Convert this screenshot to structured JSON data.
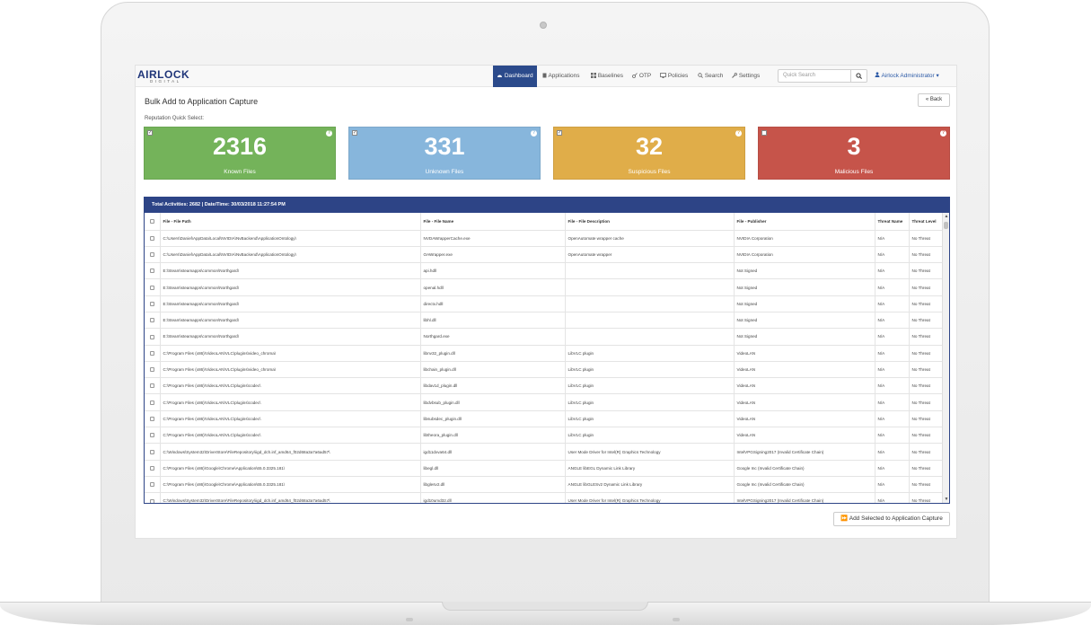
{
  "app": {
    "logo_text": "AIRLOCK",
    "logo_sub": "DIGITAL"
  },
  "nav": {
    "items": [
      {
        "label": "Dashboard",
        "icon": "dashboard-icon",
        "active": true
      },
      {
        "label": "Applications",
        "icon": "file-icon",
        "active": false
      },
      {
        "label": "Baselines",
        "icon": "grid-icon",
        "active": false
      },
      {
        "label": "OTP",
        "icon": "key-icon",
        "active": false
      },
      {
        "label": "Policies",
        "icon": "monitor-icon",
        "active": false
      },
      {
        "label": "Search",
        "icon": "search-icon",
        "active": false
      },
      {
        "label": "Settings",
        "icon": "wrench-icon",
        "active": false
      }
    ],
    "search_placeholder": "Quick Search",
    "user_label": "Airlock Administrator"
  },
  "page": {
    "title": "Bulk Add to Application Capture",
    "back_label": "Back",
    "quick_select_label": "Reputation Quick Select:"
  },
  "tiles": [
    {
      "count": "2316",
      "label": "Known Files",
      "color": "#74b35a",
      "checked": true
    },
    {
      "count": "331",
      "label": "Unknown Files",
      "color": "#87b6dc",
      "checked": true
    },
    {
      "count": "32",
      "label": "Suspicious Files",
      "color": "#e0ad49",
      "checked": true
    },
    {
      "count": "3",
      "label": "Malicious Files",
      "color": "#c6544a",
      "checked": false
    }
  ],
  "table": {
    "summary": "Total Activities: 2682 | Date/Time: 30/03/2018 11:27:54 PM",
    "columns": [
      "File - File Path",
      "File - File Name",
      "File - File Description",
      "File - Publisher",
      "Threat Name",
      "Threat Level"
    ],
    "rows": [
      [
        "C:\\Users\\Daniel\\AppData\\Local\\NVIDIA\\NvBackend\\ApplicationOntology\\",
        "NVDAWrapperCache.exe",
        "OpenAutomate wrapper cache",
        "NVIDIA Corporation",
        "N/A",
        "No Threat"
      ],
      [
        "C:\\Users\\Daniel\\AppData\\Local\\NVIDIA\\NvBackend\\ApplicationOntology\\",
        "OAWrapper.exe",
        "OpenAutomate wrapper",
        "NVIDIA Corporation",
        "N/A",
        "No Threat"
      ],
      [
        "E:\\Steam\\steamapps\\common\\Northgard\\",
        "api.hdll",
        "",
        "Not Signed",
        "N/A",
        "No Threat"
      ],
      [
        "E:\\Steam\\steamapps\\common\\Northgard\\",
        "openal.hdll",
        "",
        "Not Signed",
        "N/A",
        "No Threat"
      ],
      [
        "E:\\Steam\\steamapps\\common\\Northgard\\",
        "directx.hdll",
        "",
        "Not Signed",
        "N/A",
        "No Threat"
      ],
      [
        "E:\\Steam\\steamapps\\common\\Northgard\\",
        "libhl.dll",
        "",
        "Not Signed",
        "N/A",
        "No Threat"
      ],
      [
        "E:\\Steam\\steamapps\\common\\Northgard\\",
        "Northgard.exe",
        "",
        "Not Signed",
        "N/A",
        "No Threat"
      ],
      [
        "C:\\Program Files (x86)\\VideoLAN\\VLC\\plugins\\video_chroma\\",
        "libnv32_plugin.dll",
        "LibVLC plugin",
        "VideoLAN",
        "N/A",
        "No Threat"
      ],
      [
        "C:\\Program Files (x86)\\VideoLAN\\VLC\\plugins\\video_chroma\\",
        "libchain_plugin.dll",
        "LibVLC plugin",
        "VideoLAN",
        "N/A",
        "No Threat"
      ],
      [
        "C:\\Program Files (x86)\\VideoLAN\\VLC\\plugins\\codec\\",
        "libdav1d_plugin.dll",
        "LibVLC plugin",
        "VideoLAN",
        "N/A",
        "No Threat"
      ],
      [
        "C:\\Program Files (x86)\\VideoLAN\\VLC\\plugins\\codec\\",
        "libdvbsub_plugin.dll",
        "LibVLC plugin",
        "VideoLAN",
        "N/A",
        "No Threat"
      ],
      [
        "C:\\Program Files (x86)\\VideoLAN\\VLC\\plugins\\codec\\",
        "libsubsdec_plugin.dll",
        "LibVLC plugin",
        "VideoLAN",
        "N/A",
        "No Threat"
      ],
      [
        "C:\\Program Files (x86)\\VideoLAN\\VLC\\plugins\\codec\\",
        "libtheora_plugin.dll",
        "LibVLC plugin",
        "VideoLAN",
        "N/A",
        "No Threat"
      ],
      [
        "C:\\Windows\\System32\\DriverStore\\FileRepository\\iigd_dch.inf_amd64_f02d68a3a7a6ad57\\",
        "igd11dxva64.dll",
        "User Mode Driver for Intel(R) Graphics Technology",
        "IntelVPGSigning2017 (Invalid Certificate Chain)",
        "N/A",
        "No Threat"
      ],
      [
        "C:\\Program Files (x86)\\Google\\Chrome\\Application\\65.0.3325.181\\",
        "libegl.dll",
        "ANGLE libEGL Dynamic Link Library",
        "Google Inc (Invalid Certificate Chain)",
        "N/A",
        "No Threat"
      ],
      [
        "C:\\Program Files (x86)\\Google\\Chrome\\Application\\65.0.3325.181\\",
        "libglesv2.dll",
        "ANGLE libGLESv2 Dynamic Link Library",
        "Google Inc (Invalid Certificate Chain)",
        "N/A",
        "No Threat"
      ],
      [
        "C:\\Windows\\System32\\DriverStore\\FileRepository\\iigd_dch.inf_amd64_f02d68a3a7a6ad57\\",
        "igd10umd32.dll",
        "User Mode Driver for Intel(R) Graphics Technology",
        "IntelVPGSigning2017 (Invalid Certificate Chain)",
        "N/A",
        "No Threat"
      ]
    ]
  },
  "actions": {
    "add_selected_label": "Add Selected to Application Capture"
  },
  "colors": {
    "brand_navy": "#2d4486",
    "nav_active": "#2b4a8b"
  }
}
